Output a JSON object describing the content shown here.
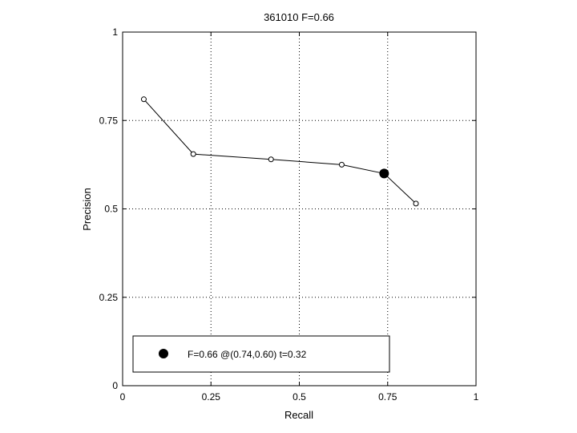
{
  "chart_data": {
    "type": "line",
    "title": "361010 F=0.66",
    "xlabel": "Recall",
    "ylabel": "Precision",
    "xlim": [
      0,
      1
    ],
    "ylim": [
      0,
      1
    ],
    "xticks": [
      0,
      0.25,
      0.5,
      0.75,
      1
    ],
    "yticks": [
      0,
      0.25,
      0.5,
      0.75,
      1
    ],
    "xtick_labels": [
      "0",
      "0.25",
      "0.5",
      "0.75",
      "1"
    ],
    "ytick_labels": [
      "0",
      "0.25",
      "0.5",
      "0.75",
      "1"
    ],
    "grid": true,
    "series": [
      {
        "x": [
          0.06,
          0.2,
          0.42,
          0.62,
          0.83
        ],
        "y": [
          0.81,
          0.655,
          0.64,
          0.625,
          0.515
        ]
      }
    ],
    "line_path": {
      "x": [
        0.06,
        0.2,
        0.42,
        0.62,
        0.74,
        0.83
      ],
      "y": [
        0.81,
        0.655,
        0.64,
        0.625,
        0.6,
        0.515
      ]
    },
    "highlight_point": {
      "x": 0.74,
      "y": 0.6
    },
    "legend": {
      "location": "bottom-left",
      "entries": [
        "F=0.66 @(0.74,0.60) t=0.32"
      ]
    }
  }
}
